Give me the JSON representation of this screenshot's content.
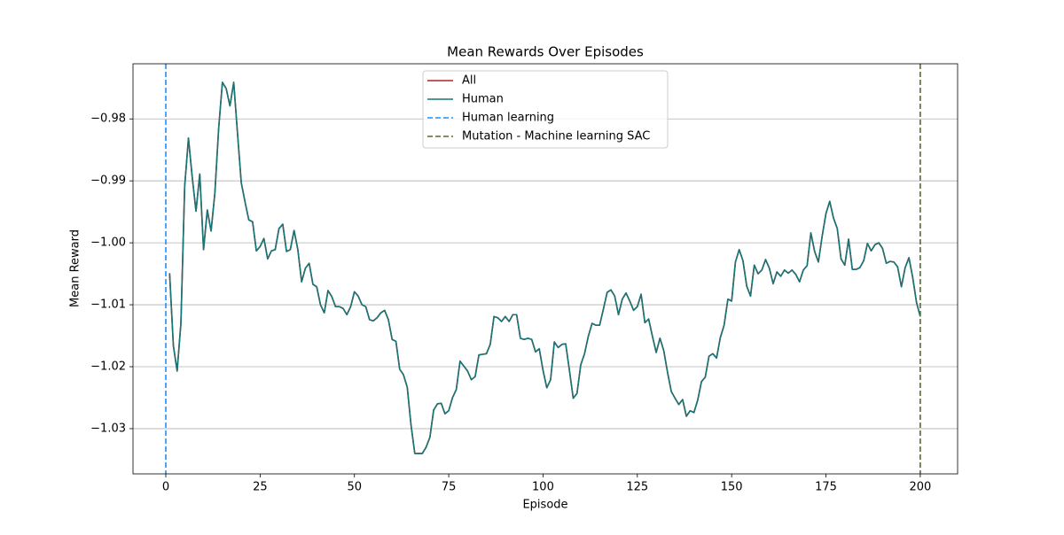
{
  "chart_data": {
    "type": "line",
    "title": "Mean Rewards Over Episodes",
    "x_label": "Episode",
    "y_label": "Mean Reward",
    "xlim": [
      -8.7,
      209.9
    ],
    "ylim": [
      -1.0373,
      -0.9711
    ],
    "xticks": [
      0,
      25,
      50,
      75,
      100,
      125,
      150,
      175,
      200
    ],
    "yticks": [
      {
        "value": -0.98,
        "label": "−0.98"
      },
      {
        "value": -0.99,
        "label": "−0.99"
      },
      {
        "value": -1.0,
        "label": "−1.00"
      },
      {
        "value": -1.01,
        "label": "−1.01"
      },
      {
        "value": -1.02,
        "label": "−1.02"
      },
      {
        "value": -1.03,
        "label": "−1.03"
      }
    ],
    "grid": "y",
    "legend": "upper center",
    "x": [
      1,
      2,
      3,
      4,
      5,
      6,
      7,
      8,
      9,
      10,
      11,
      12,
      13,
      14,
      15,
      16,
      17,
      18,
      19,
      20,
      21,
      22,
      23,
      24,
      25,
      26,
      27,
      28,
      29,
      30,
      31,
      32,
      33,
      34,
      35,
      36,
      37,
      38,
      39,
      40,
      41,
      42,
      43,
      44,
      45,
      46,
      47,
      48,
      49,
      50,
      51,
      52,
      53,
      54,
      55,
      56,
      57,
      58,
      59,
      60,
      61,
      62,
      63,
      64,
      65,
      66,
      67,
      68,
      69,
      70,
      71,
      72,
      73,
      74,
      75,
      76,
      77,
      78,
      79,
      80,
      81,
      82,
      83,
      84,
      85,
      86,
      87,
      88,
      89,
      90,
      91,
      92,
      93,
      94,
      95,
      96,
      97,
      98,
      99,
      100,
      101,
      102,
      103,
      104,
      105,
      106,
      107,
      108,
      109,
      110,
      111,
      112,
      113,
      114,
      115,
      116,
      117,
      118,
      119,
      120,
      121,
      122,
      123,
      124,
      125,
      126,
      127,
      128,
      129,
      130,
      131,
      132,
      133,
      134,
      135,
      136,
      137,
      138,
      139,
      140,
      141,
      142,
      143,
      144,
      145,
      146,
      147,
      148,
      149,
      150,
      151,
      152,
      153,
      154,
      155,
      156,
      157,
      158,
      159,
      160,
      161,
      162,
      163,
      164,
      165,
      166,
      167,
      168,
      169,
      170,
      171,
      172,
      173,
      174,
      175,
      176,
      177,
      178,
      179,
      180,
      181,
      182,
      183,
      184,
      185,
      186,
      187,
      188,
      189,
      190,
      191,
      192,
      193,
      194,
      195,
      196,
      197,
      198,
      199,
      200
    ],
    "series": [
      {
        "name": "All",
        "color": "#b22222",
        "values": [
          -1.0049,
          -1.0166,
          -1.0207,
          -1.013,
          -0.9909,
          -0.9831,
          -0.9894,
          -0.9949,
          -0.9889,
          -1.0011,
          -0.9947,
          -0.9981,
          -0.992,
          -0.9816,
          -0.9741,
          -0.9751,
          -0.9779,
          -0.9741,
          -0.9823,
          -0.9903,
          -0.9934,
          -0.9963,
          -0.9966,
          -1.0013,
          -1.0006,
          -0.9993,
          -1.0026,
          -1.0013,
          -1.0011,
          -0.9977,
          -0.997,
          -1.0014,
          -1.0011,
          -0.998,
          -1.0011,
          -1.0063,
          -1.0041,
          -1.0033,
          -1.0067,
          -1.0071,
          -1.01,
          -1.0113,
          -1.0077,
          -1.0087,
          -1.0103,
          -1.0103,
          -1.0106,
          -1.0116,
          -1.0103,
          -1.0079,
          -1.0086,
          -1.01,
          -1.0103,
          -1.0124,
          -1.0126,
          -1.0121,
          -1.0113,
          -1.0109,
          -1.0124,
          -1.0156,
          -1.0159,
          -1.0204,
          -1.0213,
          -1.0233,
          -1.0294,
          -1.034,
          -1.034,
          -1.034,
          -1.033,
          -1.0314,
          -1.027,
          -1.026,
          -1.0259,
          -1.0276,
          -1.0271,
          -1.025,
          -1.0237,
          -1.0191,
          -1.0199,
          -1.0207,
          -1.0221,
          -1.0216,
          -1.0181,
          -1.018,
          -1.0179,
          -1.0164,
          -1.0119,
          -1.0121,
          -1.0127,
          -1.0119,
          -1.0127,
          -1.0116,
          -1.0116,
          -1.0154,
          -1.0156,
          -1.0154,
          -1.0156,
          -1.0176,
          -1.0171,
          -1.0206,
          -1.0234,
          -1.0221,
          -1.016,
          -1.0169,
          -1.0164,
          -1.0163,
          -1.0206,
          -1.0251,
          -1.0243,
          -1.0197,
          -1.0179,
          -1.0151,
          -1.013,
          -1.0133,
          -1.0133,
          -1.0107,
          -1.008,
          -1.0076,
          -1.0086,
          -1.0116,
          -1.0091,
          -1.0081,
          -1.0094,
          -1.0109,
          -1.0103,
          -1.0083,
          -1.0129,
          -1.0123,
          -1.0151,
          -1.0177,
          -1.0154,
          -1.0174,
          -1.0209,
          -1.024,
          -1.0251,
          -1.0261,
          -1.0253,
          -1.028,
          -1.0271,
          -1.0274,
          -1.0254,
          -1.0224,
          -1.0217,
          -1.0183,
          -1.0179,
          -1.0186,
          -1.0153,
          -1.0133,
          -1.0091,
          -1.0094,
          -1.0031,
          -1.0011,
          -1.0029,
          -1.007,
          -1.0086,
          -1.0036,
          -1.005,
          -1.0044,
          -1.0027,
          -1.0041,
          -1.0066,
          -1.0047,
          -1.0054,
          -1.0044,
          -1.0049,
          -1.0044,
          -1.0051,
          -1.0063,
          -1.0044,
          -1.0037,
          -0.9984,
          -1.0014,
          -1.0031,
          -0.9989,
          -0.9953,
          -0.9933,
          -0.996,
          -0.9977,
          -1.0026,
          -1.0036,
          -0.9994,
          -1.0043,
          -1.0043,
          -1.004,
          -1.0029,
          -1.0001,
          -1.0013,
          -1.0003,
          -1.0,
          -1.0009,
          -1.0033,
          -1.003,
          -1.0031,
          -1.0039,
          -1.0071,
          -1.004,
          -1.0024,
          -1.0056,
          -1.0096,
          -1.0119
        ]
      },
      {
        "name": "Human",
        "color": "#167676",
        "values": [
          -1.0049,
          -1.0166,
          -1.0207,
          -1.013,
          -0.9909,
          -0.9831,
          -0.9894,
          -0.9949,
          -0.9889,
          -1.0011,
          -0.9947,
          -0.9981,
          -0.992,
          -0.9816,
          -0.9741,
          -0.9751,
          -0.9779,
          -0.9741,
          -0.9823,
          -0.9903,
          -0.9934,
          -0.9963,
          -0.9966,
          -1.0013,
          -1.0006,
          -0.9993,
          -1.0026,
          -1.0013,
          -1.0011,
          -0.9977,
          -0.997,
          -1.0014,
          -1.0011,
          -0.998,
          -1.0011,
          -1.0063,
          -1.0041,
          -1.0033,
          -1.0067,
          -1.0071,
          -1.01,
          -1.0113,
          -1.0077,
          -1.0087,
          -1.0103,
          -1.0103,
          -1.0106,
          -1.0116,
          -1.0103,
          -1.0079,
          -1.0086,
          -1.01,
          -1.0103,
          -1.0124,
          -1.0126,
          -1.0121,
          -1.0113,
          -1.0109,
          -1.0124,
          -1.0156,
          -1.0159,
          -1.0204,
          -1.0213,
          -1.0233,
          -1.0294,
          -1.034,
          -1.034,
          -1.034,
          -1.033,
          -1.0314,
          -1.027,
          -1.026,
          -1.0259,
          -1.0276,
          -1.0271,
          -1.025,
          -1.0237,
          -1.0191,
          -1.0199,
          -1.0207,
          -1.0221,
          -1.0216,
          -1.0181,
          -1.018,
          -1.0179,
          -1.0164,
          -1.0119,
          -1.0121,
          -1.0127,
          -1.0119,
          -1.0127,
          -1.0116,
          -1.0116,
          -1.0154,
          -1.0156,
          -1.0154,
          -1.0156,
          -1.0176,
          -1.0171,
          -1.0206,
          -1.0234,
          -1.0221,
          -1.016,
          -1.0169,
          -1.0164,
          -1.0163,
          -1.0206,
          -1.0251,
          -1.0243,
          -1.0197,
          -1.0179,
          -1.0151,
          -1.013,
          -1.0133,
          -1.0133,
          -1.0107,
          -1.008,
          -1.0076,
          -1.0086,
          -1.0116,
          -1.0091,
          -1.0081,
          -1.0094,
          -1.0109,
          -1.0103,
          -1.0083,
          -1.0129,
          -1.0123,
          -1.0151,
          -1.0177,
          -1.0154,
          -1.0174,
          -1.0209,
          -1.024,
          -1.0251,
          -1.0261,
          -1.0253,
          -1.028,
          -1.0271,
          -1.0274,
          -1.0254,
          -1.0224,
          -1.0217,
          -1.0183,
          -1.0179,
          -1.0186,
          -1.0153,
          -1.0133,
          -1.0091,
          -1.0094,
          -1.0031,
          -1.0011,
          -1.0029,
          -1.007,
          -1.0086,
          -1.0036,
          -1.005,
          -1.0044,
          -1.0027,
          -1.0041,
          -1.0066,
          -1.0047,
          -1.0054,
          -1.0044,
          -1.0049,
          -1.0044,
          -1.0051,
          -1.0063,
          -1.0044,
          -1.0037,
          -0.9984,
          -1.0014,
          -1.0031,
          -0.9989,
          -0.9953,
          -0.9933,
          -0.996,
          -0.9977,
          -1.0026,
          -1.0036,
          -0.9994,
          -1.0043,
          -1.0043,
          -1.004,
          -1.0029,
          -1.0001,
          -1.0013,
          -1.0003,
          -1.0,
          -1.0009,
          -1.0033,
          -1.003,
          -1.0031,
          -1.0039,
          -1.0071,
          -1.004,
          -1.0024,
          -1.0056,
          -1.0096,
          -1.0119
        ]
      }
    ],
    "vlines": [
      {
        "name": "Human learning",
        "color": "#1e90ff",
        "x": 0
      },
      {
        "name": "Mutation - Machine learning SAC",
        "color": "#556b2f",
        "x": 200
      }
    ]
  }
}
